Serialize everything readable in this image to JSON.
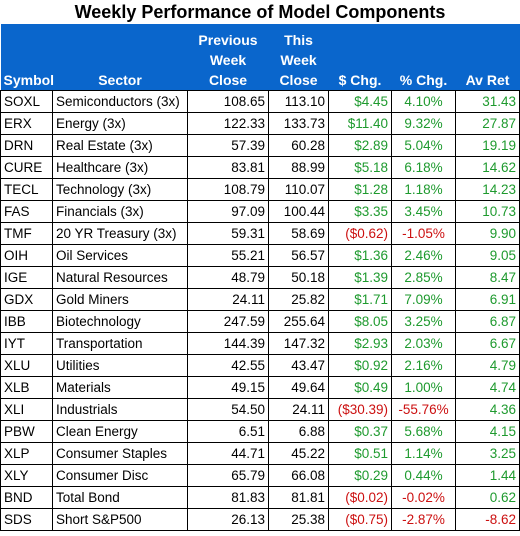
{
  "title": "Weekly Performance of Model Components",
  "headers": {
    "symbol": "Symbol",
    "sector": "Sector",
    "prev": [
      "Previous",
      "Week",
      "Close"
    ],
    "this": [
      "This",
      "Week",
      "Close"
    ],
    "chg": "$ Chg.",
    "pct": "% Chg.",
    "avret": "Av Ret"
  },
  "colors": {
    "header_bg": "#0a66cc",
    "positive": "#1e9a2e",
    "negative": "#cc1010"
  },
  "rows": [
    {
      "symbol": "SOXL",
      "sector": "Semiconductors (3x)",
      "prev": "108.65",
      "this": "113.10",
      "chg": "$4.45",
      "pct": "4.10%",
      "avret": "31.43",
      "dir": "pos",
      "avdir": "pos"
    },
    {
      "symbol": "ERX",
      "sector": "Energy (3x)",
      "prev": "122.33",
      "this": "133.73",
      "chg": "$11.40",
      "pct": "9.32%",
      "avret": "27.87",
      "dir": "pos",
      "avdir": "pos"
    },
    {
      "symbol": "DRN",
      "sector": "Real Estate (3x)",
      "prev": "57.39",
      "this": "60.28",
      "chg": "$2.89",
      "pct": "5.04%",
      "avret": "19.19",
      "dir": "pos",
      "avdir": "pos"
    },
    {
      "symbol": "CURE",
      "sector": "Healthcare (3x)",
      "prev": "83.81",
      "this": "88.99",
      "chg": "$5.18",
      "pct": "6.18%",
      "avret": "14.62",
      "dir": "pos",
      "avdir": "pos"
    },
    {
      "symbol": "TECL",
      "sector": "Technology (3x)",
      "prev": "108.79",
      "this": "110.07",
      "chg": "$1.28",
      "pct": "1.18%",
      "avret": "14.23",
      "dir": "pos",
      "avdir": "pos"
    },
    {
      "symbol": "FAS",
      "sector": "Financials (3x)",
      "prev": "97.09",
      "this": "100.44",
      "chg": "$3.35",
      "pct": "3.45%",
      "avret": "10.73",
      "dir": "pos",
      "avdir": "pos"
    },
    {
      "symbol": "TMF",
      "sector": "20 YR Treasury (3x)",
      "prev": "59.31",
      "this": "58.69",
      "chg": "($0.62)",
      "pct": "-1.05%",
      "avret": "9.90",
      "dir": "neg",
      "avdir": "pos"
    },
    {
      "symbol": "OIH",
      "sector": "Oil Services",
      "prev": "55.21",
      "this": "56.57",
      "chg": "$1.36",
      "pct": "2.46%",
      "avret": "9.05",
      "dir": "pos",
      "avdir": "pos"
    },
    {
      "symbol": "IGE",
      "sector": "Natural Resources",
      "prev": "48.79",
      "this": "50.18",
      "chg": "$1.39",
      "pct": "2.85%",
      "avret": "8.47",
      "dir": "pos",
      "avdir": "pos"
    },
    {
      "symbol": "GDX",
      "sector": "Gold Miners",
      "prev": "24.11",
      "this": "25.82",
      "chg": "$1.71",
      "pct": "7.09%",
      "avret": "6.91",
      "dir": "pos",
      "avdir": "pos"
    },
    {
      "symbol": "IBB",
      "sector": "Biotechnology",
      "prev": "247.59",
      "this": "255.64",
      "chg": "$8.05",
      "pct": "3.25%",
      "avret": "6.87",
      "dir": "pos",
      "avdir": "pos"
    },
    {
      "symbol": "IYT",
      "sector": "Transportation",
      "prev": "144.39",
      "this": "147.32",
      "chg": "$2.93",
      "pct": "2.03%",
      "avret": "6.67",
      "dir": "pos",
      "avdir": "pos"
    },
    {
      "symbol": "XLU",
      "sector": "Utilities",
      "prev": "42.55",
      "this": "43.47",
      "chg": "$0.92",
      "pct": "2.16%",
      "avret": "4.79",
      "dir": "pos",
      "avdir": "pos"
    },
    {
      "symbol": "XLB",
      "sector": "Materials",
      "prev": "49.15",
      "this": "49.64",
      "chg": "$0.49",
      "pct": "1.00%",
      "avret": "4.74",
      "dir": "pos",
      "avdir": "pos"
    },
    {
      "symbol": "XLI",
      "sector": "Industrials",
      "prev": "54.50",
      "this": "24.11",
      "chg": "($30.39)",
      "pct": "-55.76%",
      "avret": "4.36",
      "dir": "neg",
      "avdir": "pos"
    },
    {
      "symbol": "PBW",
      "sector": "Clean Energy",
      "prev": "6.51",
      "this": "6.88",
      "chg": "$0.37",
      "pct": "5.68%",
      "avret": "4.15",
      "dir": "pos",
      "avdir": "pos"
    },
    {
      "symbol": "XLP",
      "sector": "Consumer Staples",
      "prev": "44.71",
      "this": "45.22",
      "chg": "$0.51",
      "pct": "1.14%",
      "avret": "3.25",
      "dir": "pos",
      "avdir": "pos"
    },
    {
      "symbol": "XLY",
      "sector": "Consumer Disc",
      "prev": "65.79",
      "this": "66.08",
      "chg": "$0.29",
      "pct": "0.44%",
      "avret": "1.44",
      "dir": "pos",
      "avdir": "pos"
    },
    {
      "symbol": "BND",
      "sector": "Total Bond",
      "prev": "81.83",
      "this": "81.81",
      "chg": "($0.02)",
      "pct": "-0.02%",
      "avret": "0.62",
      "dir": "neg",
      "avdir": "pos"
    },
    {
      "symbol": "SDS",
      "sector": "Short S&P500",
      "prev": "26.13",
      "this": "25.38",
      "chg": "($0.75)",
      "pct": "-2.87%",
      "avret": "-8.62",
      "dir": "neg",
      "avdir": "neg"
    }
  ]
}
